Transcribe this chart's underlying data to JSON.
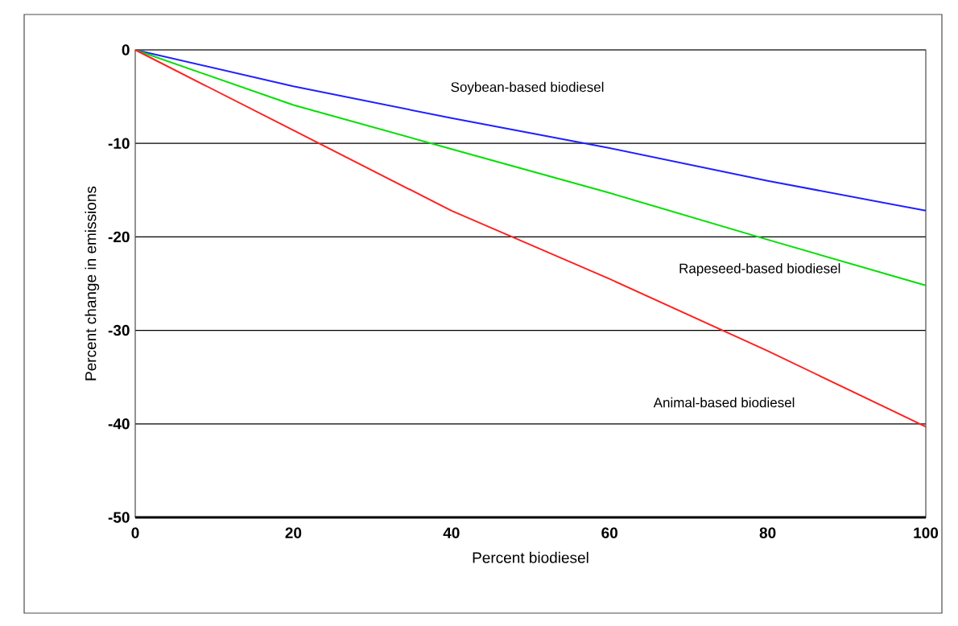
{
  "chart_data": {
    "type": "line",
    "xlabel": "Percent biodiesel",
    "ylabel": "Percent change in emissions",
    "x": [
      0,
      20,
      40,
      60,
      80,
      100
    ],
    "series": [
      {
        "color": "#2020ff",
        "values": [
          0,
          -3.9,
          -7.3,
          -10.5,
          -14,
          -17.2
        ]
      },
      {
        "color": "#00e000",
        "values": [
          0,
          -5.9,
          -10.6,
          -15.3,
          -20.3,
          -25.2
        ]
      },
      {
        "color": "#ff2020",
        "values": [
          0,
          -8.6,
          -17.2,
          -24.5,
          -32.2,
          -40.3
        ]
      }
    ],
    "annotations": [
      "Soybean-based biodiesel",
      "Rapeseed-based biodiesel",
      "Animal-based biodiesel"
    ],
    "xlim": [
      0,
      100
    ],
    "ylim": [
      -50,
      0
    ],
    "xticks": [
      0,
      20,
      40,
      60,
      80,
      100
    ],
    "yticks": [
      -50,
      -40,
      -30,
      -20,
      -10,
      0
    ],
    "grid": "y",
    "marker": "none",
    "line_style": "solid"
  }
}
